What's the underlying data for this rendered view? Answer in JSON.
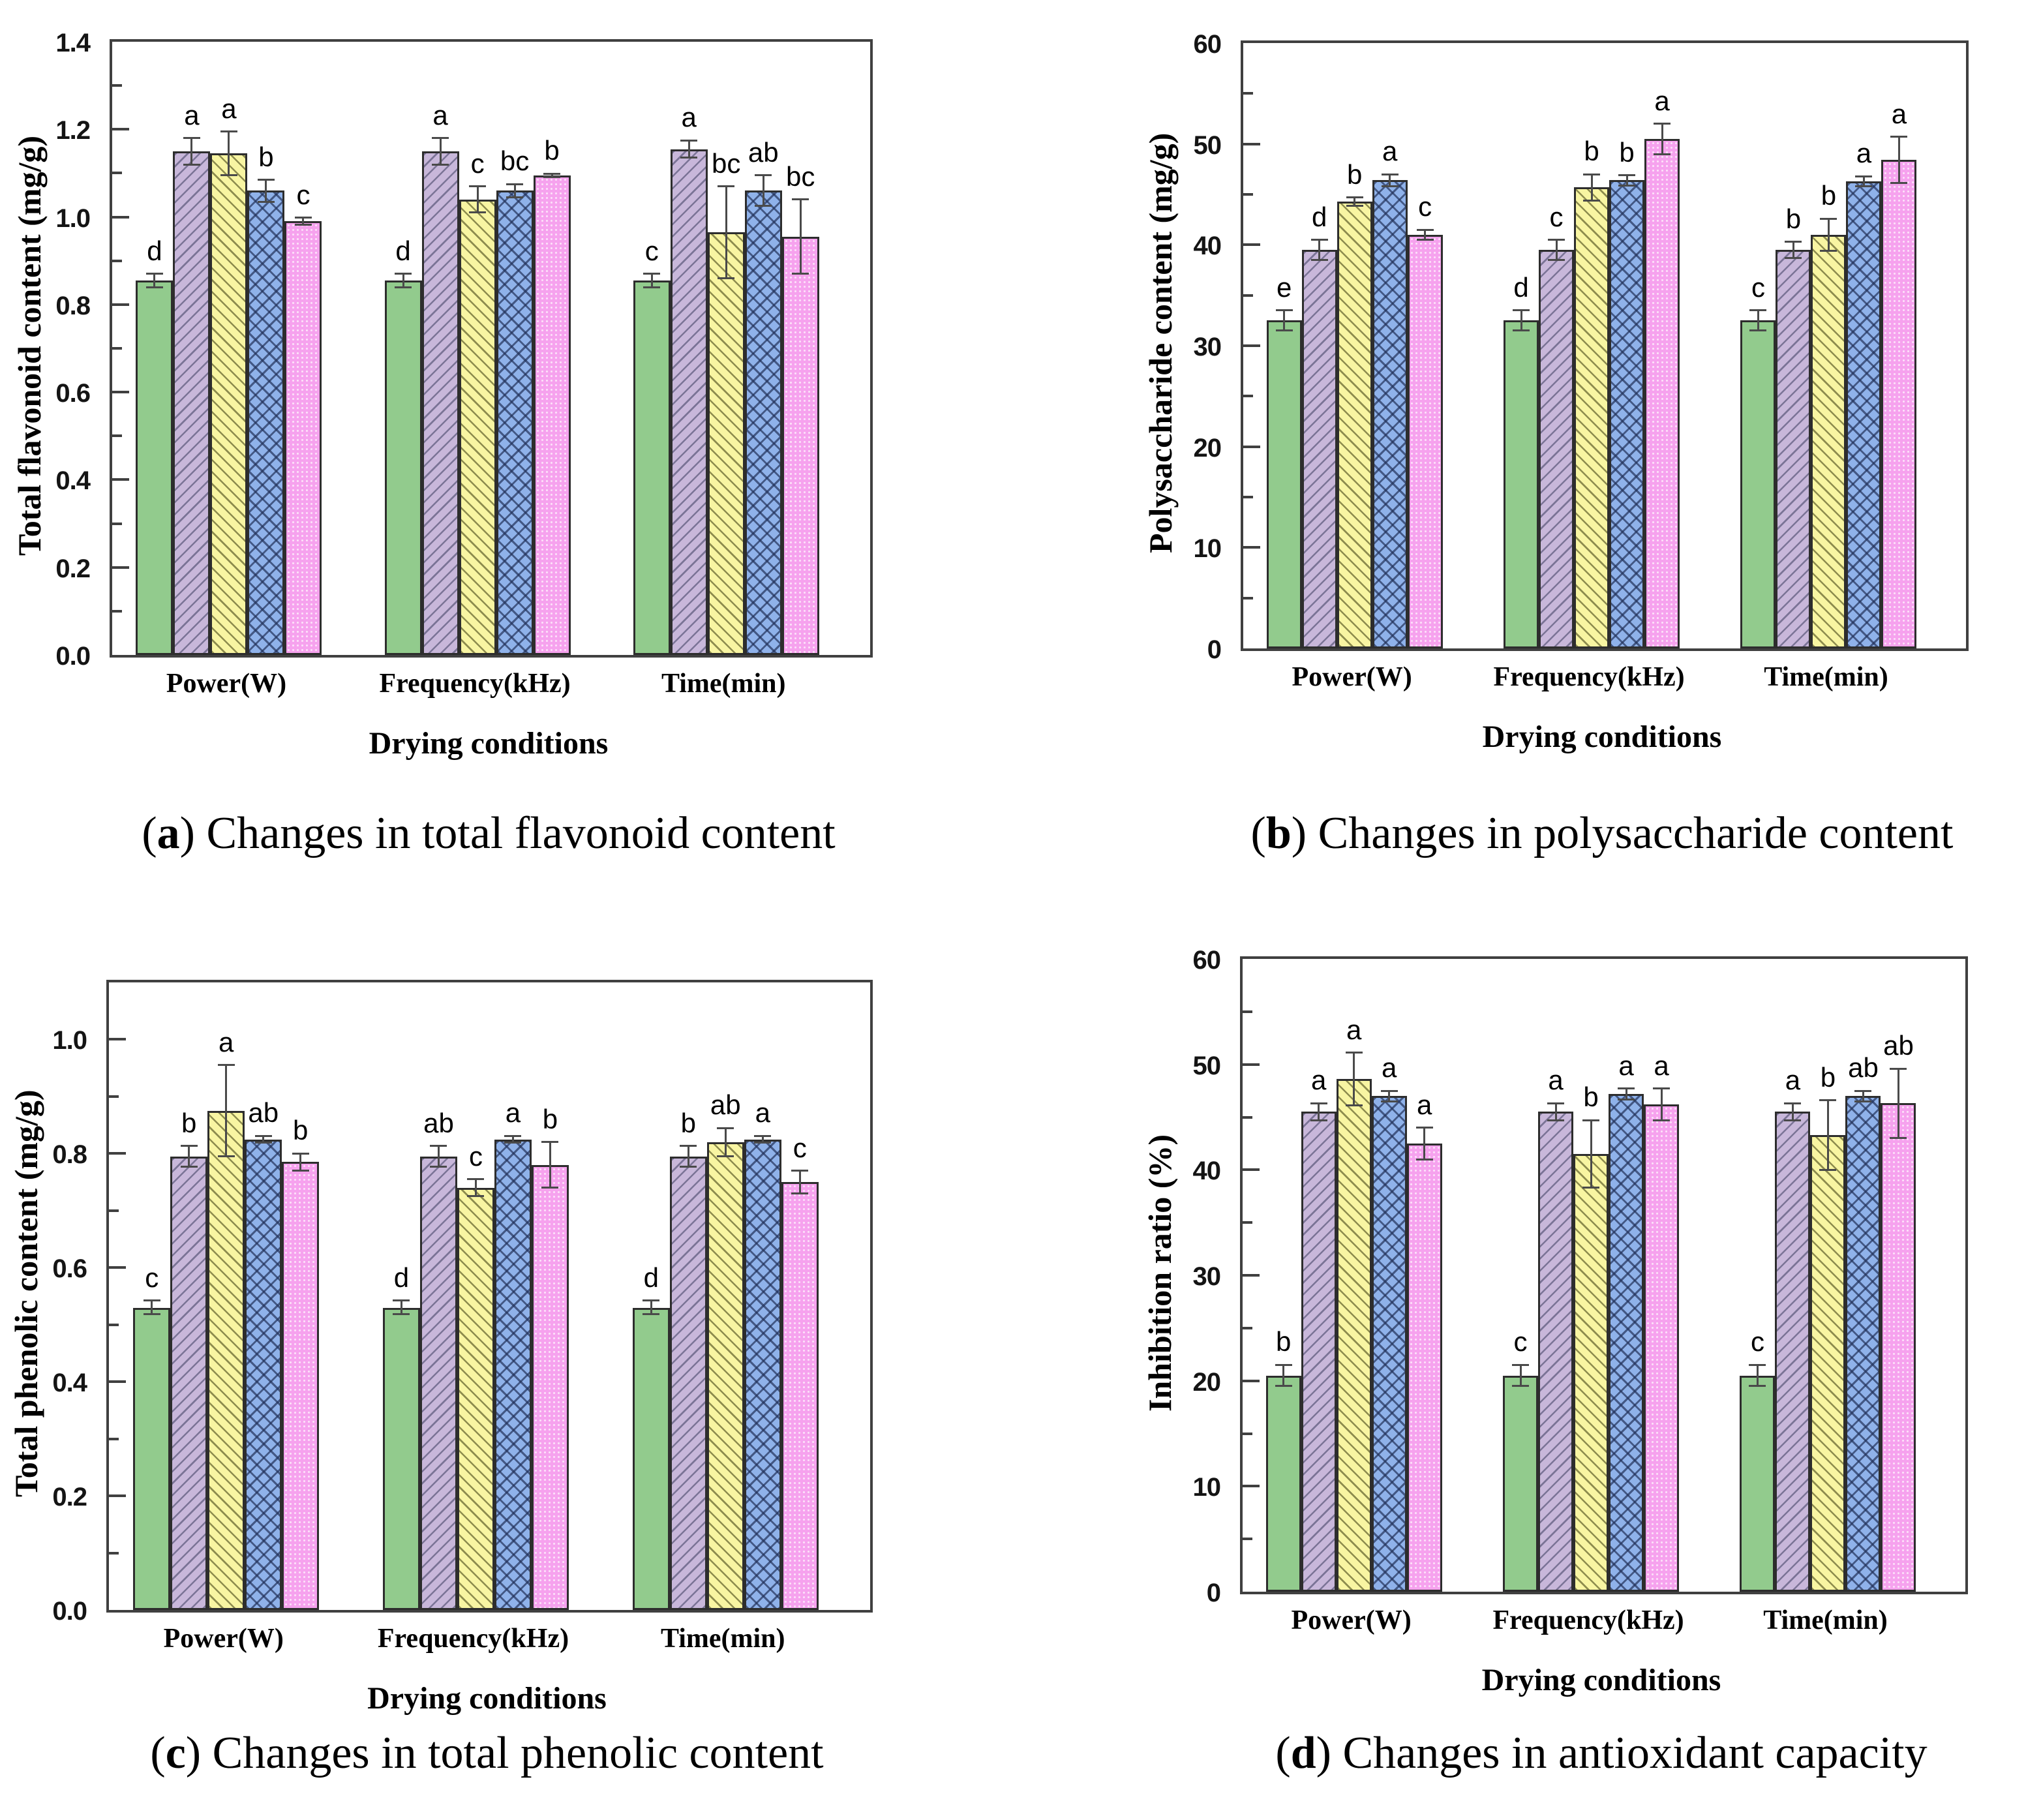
{
  "captions": [
    {
      "pre": "(",
      "letter": "a",
      "post": ") ",
      "text": "Changes in total flavonoid content"
    },
    {
      "pre": "(",
      "letter": "b",
      "post": ") ",
      "text": "Changes in polysaccharide content"
    },
    {
      "pre": "(",
      "letter": "c",
      "post": ") ",
      "text": "Changes in total phenolic content"
    },
    {
      "pre": "(",
      "letter": "d",
      "post": ") ",
      "text": "Changes in antioxidant capacity"
    }
  ],
  "palette": {
    "green": "#92cb8d",
    "purple": "#c8b7da",
    "yellow": "#f8f5a2",
    "blue": "#8fb2ea",
    "pink": "#f6a2ee",
    "axis": "#404040"
  },
  "chart_data": [
    {
      "id": "a",
      "type": "bar",
      "ylabel": "Total flavonoid content (mg/g)",
      "xlabel": "Drying conditions",
      "categories": [
        "Power(W)",
        "Frequency(kHz)",
        "Time(min)"
      ],
      "ylim": [
        0,
        1.4
      ],
      "ytick_step": 0.2,
      "minor_step": 0.1,
      "ytick_decimals": 1,
      "grid": false,
      "legend": "none",
      "series": [
        {
          "name": "green-solid",
          "values": [
            0.855,
            0.855,
            0.855
          ],
          "errors": [
            0.015,
            0.015,
            0.015
          ],
          "letters": [
            "d",
            "d",
            "c"
          ]
        },
        {
          "name": "purple-diagonal",
          "values": [
            1.15,
            1.15,
            1.155
          ],
          "errors": [
            0.03,
            0.03,
            0.02
          ],
          "letters": [
            "a",
            "a",
            "a"
          ]
        },
        {
          "name": "yellow-diagonal",
          "values": [
            1.145,
            1.04,
            0.965
          ],
          "errors": [
            0.05,
            0.03,
            0.105
          ],
          "letters": [
            "a",
            "c",
            "bc"
          ]
        },
        {
          "name": "blue-crosshatch",
          "values": [
            1.06,
            1.06,
            1.06
          ],
          "errors": [
            0.025,
            0.015,
            0.035
          ],
          "letters": [
            "b",
            "bc",
            "ab"
          ]
        },
        {
          "name": "pink-dotted",
          "values": [
            0.99,
            1.095,
            0.955
          ],
          "errors": [
            0.008,
            0.004,
            0.085
          ],
          "letters": [
            "c",
            "b",
            "bc"
          ]
        }
      ]
    },
    {
      "id": "b",
      "type": "bar",
      "ylabel": "Polysaccharide content (mg/g)",
      "xlabel": "Drying conditions",
      "categories": [
        "Power(W)",
        "Frequency(kHz)",
        "Time(min)"
      ],
      "ylim": [
        0,
        60
      ],
      "ytick_step": 10,
      "minor_step": 5,
      "ytick_decimals": 0,
      "grid": false,
      "legend": "none",
      "series": [
        {
          "name": "green-solid",
          "values": [
            32.5,
            32.5,
            32.5
          ],
          "errors": [
            1.0,
            1.0,
            1.0
          ],
          "letters": [
            "e",
            "d",
            "c"
          ]
        },
        {
          "name": "purple-diagonal",
          "values": [
            39.5,
            39.5,
            39.5
          ],
          "errors": [
            1.0,
            1.0,
            0.8
          ],
          "letters": [
            "d",
            "c",
            "b"
          ]
        },
        {
          "name": "yellow-diagonal",
          "values": [
            44.3,
            45.7,
            41.0
          ],
          "errors": [
            0.4,
            1.3,
            1.6
          ],
          "letters": [
            "b",
            "b",
            "b"
          ]
        },
        {
          "name": "blue-crosshatch",
          "values": [
            46.4,
            46.4,
            46.3
          ],
          "errors": [
            0.6,
            0.5,
            0.5
          ],
          "letters": [
            "a",
            "b",
            "a"
          ]
        },
        {
          "name": "pink-dotted",
          "values": [
            41.0,
            50.5,
            48.4
          ],
          "errors": [
            0.5,
            1.5,
            2.3
          ],
          "letters": [
            "c",
            "a",
            "a"
          ]
        }
      ]
    },
    {
      "id": "c",
      "type": "bar",
      "ylabel": "Total phenolic content (mg/g)",
      "xlabel": "Drying conditions",
      "categories": [
        "Power(W)",
        "Frequency(kHz)",
        "Time(min)"
      ],
      "ylim": [
        0,
        1.1
      ],
      "ytick_step": 0.2,
      "minor_step": 0.1,
      "ytick_decimals": 1,
      "grid": false,
      "legend": "none",
      "series": [
        {
          "name": "green-solid",
          "values": [
            0.53,
            0.53,
            0.53
          ],
          "errors": [
            0.012,
            0.012,
            0.012
          ],
          "letters": [
            "c",
            "d",
            "d"
          ]
        },
        {
          "name": "purple-diagonal",
          "values": [
            0.795,
            0.795,
            0.795
          ],
          "errors": [
            0.018,
            0.018,
            0.018
          ],
          "letters": [
            "b",
            "ab",
            "b"
          ]
        },
        {
          "name": "yellow-diagonal",
          "values": [
            0.875,
            0.74,
            0.82
          ],
          "errors": [
            0.08,
            0.015,
            0.025
          ],
          "letters": [
            "a",
            "c",
            "ab"
          ]
        },
        {
          "name": "blue-crosshatch",
          "values": [
            0.825,
            0.825,
            0.825
          ],
          "errors": [
            0.006,
            0.006,
            0.006
          ],
          "letters": [
            "ab",
            "a",
            "a"
          ]
        },
        {
          "name": "pink-dotted",
          "values": [
            0.785,
            0.78,
            0.75
          ],
          "errors": [
            0.015,
            0.04,
            0.02
          ],
          "letters": [
            "b",
            "b",
            "c"
          ]
        }
      ]
    },
    {
      "id": "d",
      "type": "bar",
      "ylabel": "Inhibition ratio (%)",
      "xlabel": "Drying conditions",
      "categories": [
        "Power(W)",
        "Frequency(kHz)",
        "Time(min)"
      ],
      "ylim": [
        0,
        60
      ],
      "ytick_step": 10,
      "minor_step": 5,
      "ytick_decimals": 0,
      "grid": false,
      "legend": "none",
      "series": [
        {
          "name": "green-solid",
          "values": [
            20.5,
            20.5,
            20.5
          ],
          "errors": [
            1.0,
            1.0,
            1.0
          ],
          "letters": [
            "b",
            "c",
            "c"
          ]
        },
        {
          "name": "purple-diagonal",
          "values": [
            45.5,
            45.5,
            45.5
          ],
          "errors": [
            0.8,
            0.8,
            0.8
          ],
          "letters": [
            "a",
            "a",
            "a"
          ]
        },
        {
          "name": "yellow-diagonal",
          "values": [
            48.6,
            41.5,
            43.3
          ],
          "errors": [
            2.5,
            3.2,
            3.3
          ],
          "letters": [
            "a",
            "b",
            "b"
          ]
        },
        {
          "name": "blue-crosshatch",
          "values": [
            47.0,
            47.2,
            47.0
          ],
          "errors": [
            0.5,
            0.5,
            0.5
          ],
          "letters": [
            "a",
            "a",
            "ab"
          ]
        },
        {
          "name": "pink-dotted",
          "values": [
            42.5,
            46.2,
            46.3
          ],
          "errors": [
            1.5,
            1.5,
            3.3
          ],
          "letters": [
            "a",
            "a",
            "ab"
          ]
        }
      ]
    }
  ]
}
